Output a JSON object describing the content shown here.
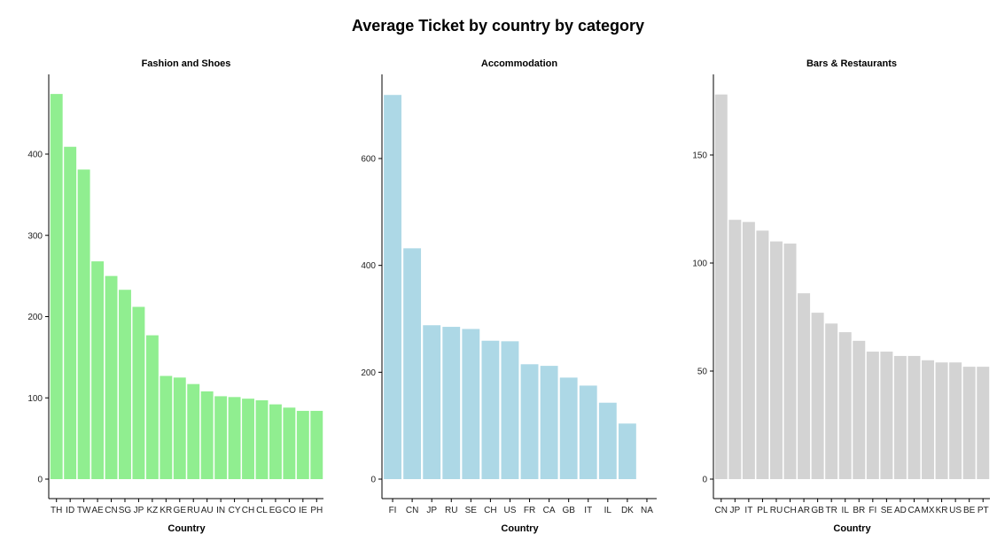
{
  "title": "Average Ticket  by country by category",
  "chart_data": [
    {
      "type": "bar",
      "title": "Fashion and Shoes",
      "color": "#90EE90",
      "xlabel": "Country",
      "ylabel": "",
      "ylim": [
        0,
        480
      ],
      "yticks": [
        0,
        100,
        200,
        300,
        400
      ],
      "categories": [
        "TH",
        "ID",
        "TW",
        "AE",
        "CN",
        "SG",
        "JP",
        "KZ",
        "KR",
        "GE",
        "RU",
        "AU",
        "IN",
        "CY",
        "CH",
        "CL",
        "EG",
        "CO",
        "IE",
        "PH"
      ],
      "values": [
        474,
        409,
        381,
        268,
        250,
        233,
        212,
        177,
        127,
        125,
        117,
        108,
        102,
        101,
        99,
        97,
        92,
        88,
        84,
        84
      ]
    },
    {
      "type": "bar",
      "title": "Accommodation",
      "color": "#ADD8E6",
      "xlabel": "Country",
      "ylabel": "",
      "ylim": [
        0,
        730
      ],
      "yticks": [
        0,
        200,
        400,
        600
      ],
      "categories": [
        "FI",
        "CN",
        "JP",
        "RU",
        "SE",
        "CH",
        "US",
        "FR",
        "CA",
        "GB",
        "IT",
        "IL",
        "DK",
        "NA"
      ],
      "values": [
        719,
        432,
        288,
        285,
        281,
        259,
        258,
        215,
        212,
        190,
        175,
        143,
        104,
        0
      ]
    },
    {
      "type": "bar",
      "title": "Bars & Restaurants",
      "color": "#D3D3D3",
      "xlabel": "Country",
      "ylabel": "",
      "ylim": [
        0,
        180
      ],
      "yticks": [
        0,
        50,
        100,
        150
      ],
      "categories": [
        "CN",
        "JP",
        "IT",
        "PL",
        "RU",
        "CH",
        "AR",
        "GB",
        "TR",
        "IL",
        "BR",
        "FI",
        "SE",
        "AD",
        "CA",
        "MX",
        "KR",
        "US",
        "BE",
        "PT"
      ],
      "values": [
        178,
        120,
        119,
        115,
        110,
        109,
        86,
        77,
        72,
        68,
        64,
        59,
        59,
        57,
        57,
        55,
        54,
        54,
        52,
        52
      ]
    }
  ]
}
